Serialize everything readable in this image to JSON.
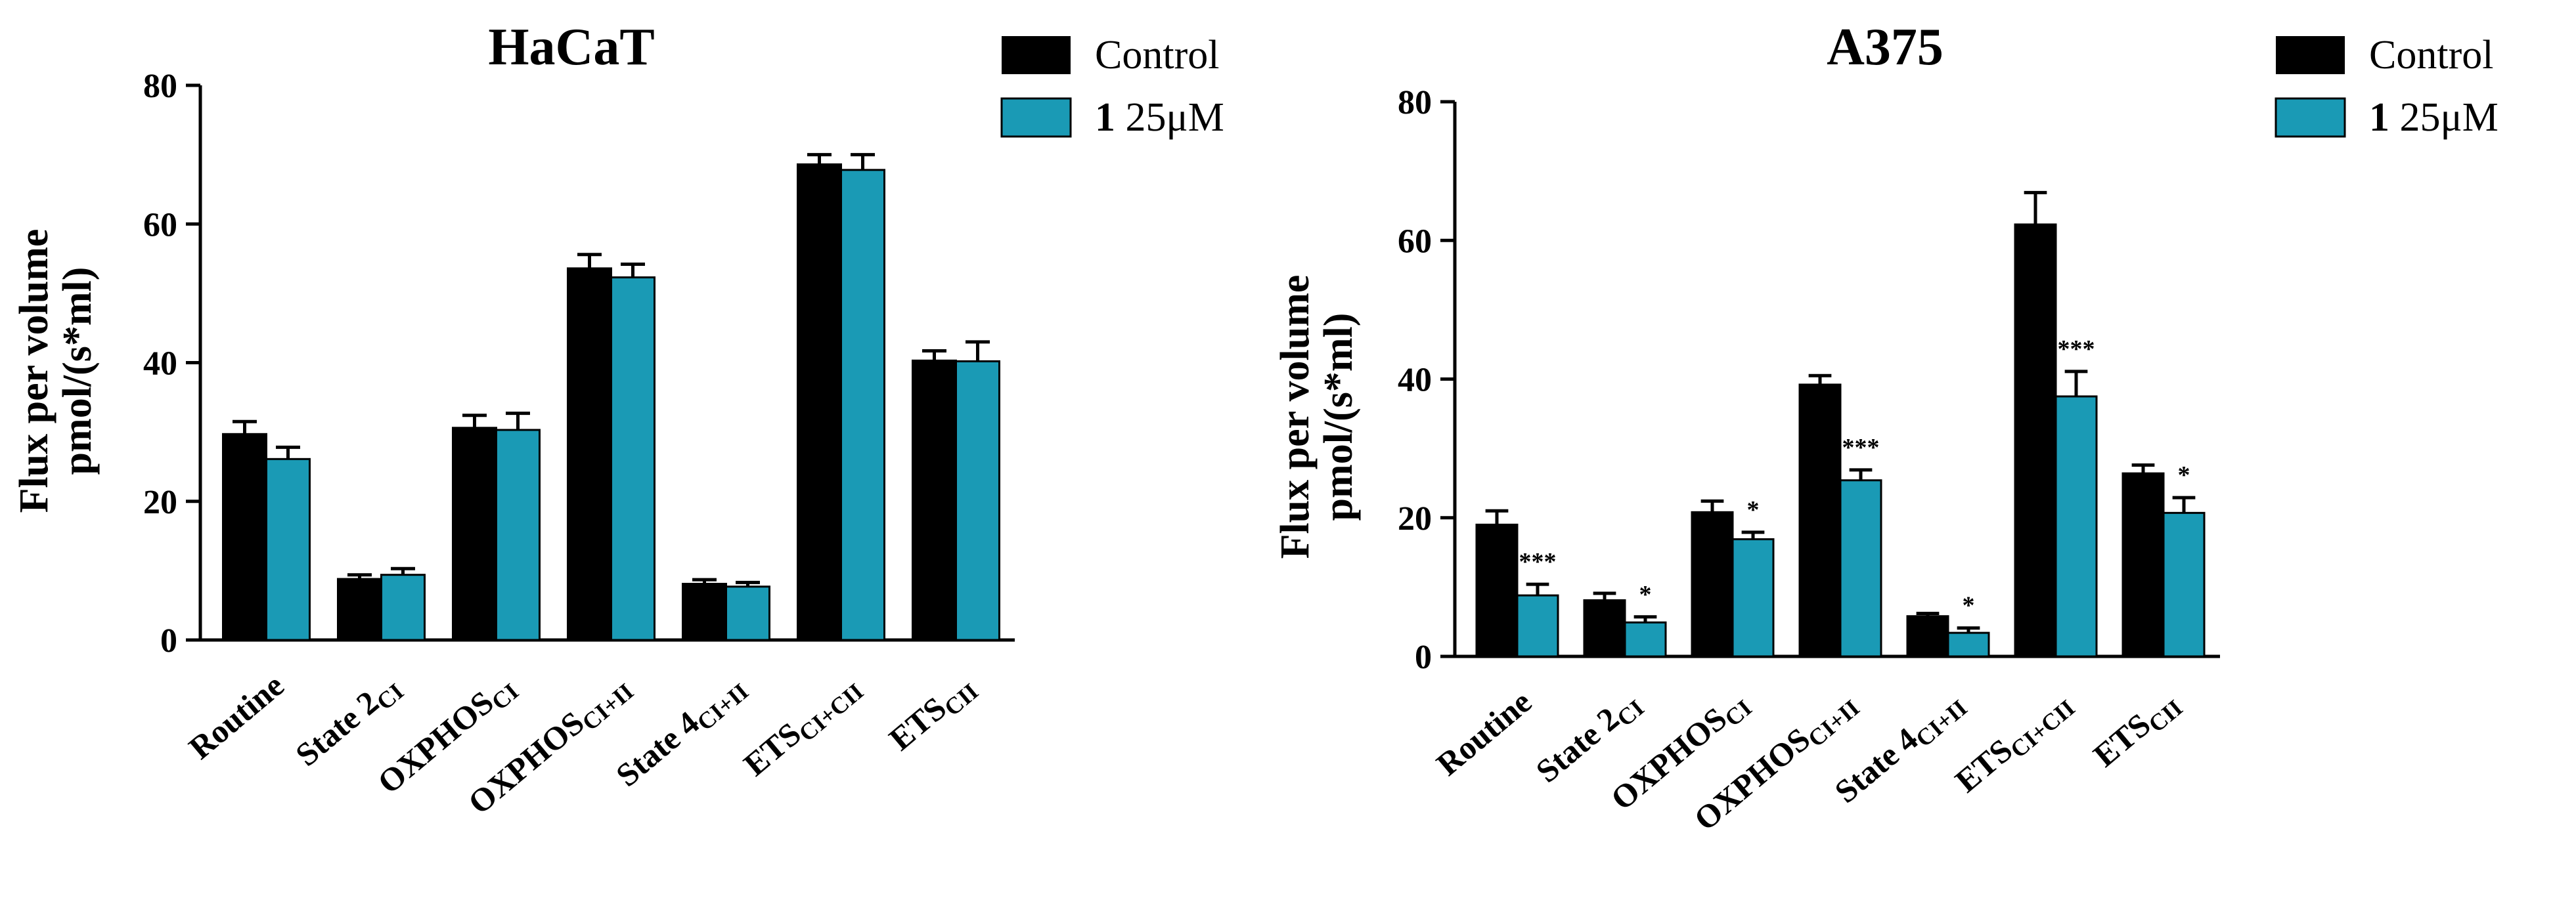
{
  "colors": {
    "control": "#000000",
    "treated": "#1A9AB5",
    "axis": "#000000"
  },
  "chart_data": [
    {
      "type": "bar",
      "title": "HaCaT",
      "xlabel": "",
      "ylabel_line1": "Flux per volume",
      "ylabel_line2": "pmol/(s*ml)",
      "ylim": [
        0,
        80
      ],
      "yticks": [
        0,
        20,
        40,
        60,
        80
      ],
      "categories": [
        {
          "main": "Routine",
          "sub": ""
        },
        {
          "main": "State 2",
          "sub": "CI"
        },
        {
          "main": "OXPHOS",
          "sub": "CI"
        },
        {
          "main": "OXPHOS",
          "sub": "CI+II"
        },
        {
          "main": "State 4",
          "sub": "CI+II"
        },
        {
          "main": "ETS",
          "sub": "CI+CII"
        },
        {
          "main": "ETS",
          "sub": "CII"
        }
      ],
      "legend": [
        {
          "bold": "",
          "text": "Control"
        },
        {
          "bold": "1",
          "text": " 25μM"
        }
      ],
      "series": [
        {
          "name": "Control",
          "values": [
            29.7,
            8.8,
            30.6,
            53.6,
            8.1,
            68.6,
            40.3
          ],
          "errors": [
            1.8,
            0.6,
            1.8,
            2.0,
            0.6,
            1.4,
            1.4
          ],
          "stars": [
            "",
            "",
            "",
            "",
            "",
            "",
            ""
          ]
        },
        {
          "name": "1 25μM",
          "values": [
            26.1,
            9.4,
            30.3,
            52.3,
            7.7,
            67.8,
            40.2
          ],
          "errors": [
            1.7,
            0.9,
            2.4,
            1.9,
            0.6,
            2.2,
            2.8
          ],
          "stars": [
            "",
            "",
            "",
            "",
            "",
            "",
            ""
          ]
        }
      ]
    },
    {
      "type": "bar",
      "title": "A375",
      "xlabel": "",
      "ylabel_line1": "Flux per volume",
      "ylabel_line2": "pmol/(s*ml)",
      "ylim": [
        0,
        80
      ],
      "yticks": [
        0,
        20,
        40,
        60,
        80
      ],
      "categories": [
        {
          "main": "Routine",
          "sub": ""
        },
        {
          "main": "State 2",
          "sub": "CI"
        },
        {
          "main": "OXPHOS",
          "sub": "CI"
        },
        {
          "main": "OXPHOS",
          "sub": "CI+II"
        },
        {
          "main": "State 4",
          "sub": "CI+II"
        },
        {
          "main": "ETS",
          "sub": "CI+CII"
        },
        {
          "main": "ETS",
          "sub": "CII"
        }
      ],
      "legend": [
        {
          "bold": "",
          "text": "Control"
        },
        {
          "bold": "1",
          "text": " 25μM"
        }
      ],
      "series": [
        {
          "name": "Control",
          "values": [
            19.0,
            8.1,
            20.8,
            39.2,
            5.8,
            62.3,
            26.4
          ],
          "errors": [
            2.0,
            1.0,
            1.6,
            1.3,
            0.4,
            4.6,
            1.2
          ],
          "stars": [
            "",
            "",
            "",
            "",
            "",
            "",
            ""
          ]
        },
        {
          "name": "1 25μM",
          "values": [
            8.8,
            4.9,
            16.9,
            25.4,
            3.4,
            37.5,
            20.7
          ],
          "errors": [
            1.6,
            0.8,
            1.0,
            1.5,
            0.7,
            3.6,
            2.2
          ],
          "stars": [
            "***",
            "*",
            "*",
            "***",
            "*",
            "***",
            "*"
          ]
        }
      ]
    }
  ]
}
